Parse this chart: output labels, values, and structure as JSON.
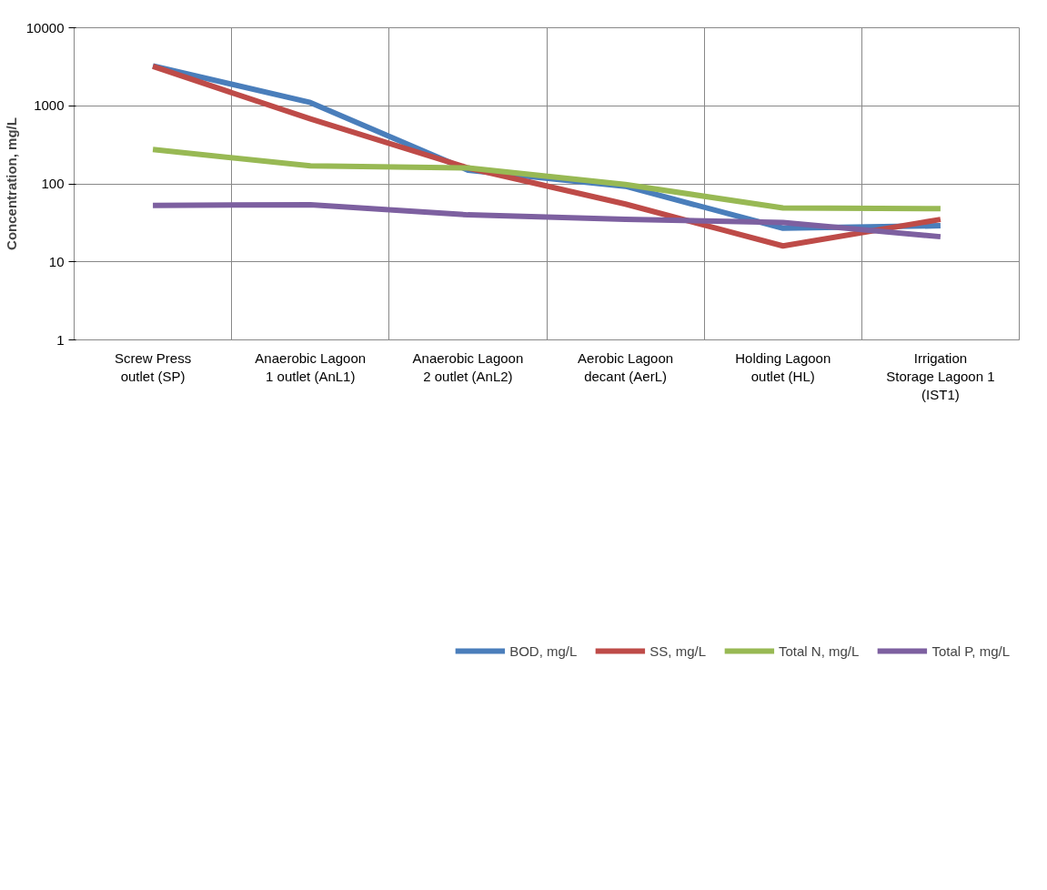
{
  "chart_data": {
    "type": "line",
    "ylabel": "Concentration, mg/L",
    "categories": [
      "Screw Press outlet (SP)",
      "Anaerobic Lagoon 1 outlet (AnL1)",
      "Anaerobic Lagoon 2 outlet (AnL2)",
      "Aerobic Lagoon decant (AerL)",
      "Holding Lagoon outlet (HL)",
      "Irrigation Storage Lagoon 1 (IST1)"
    ],
    "series": [
      {
        "name": "BOD, mg/L",
        "color": "#4a7ebb",
        "values": [
          3250,
          1100,
          150,
          93,
          27,
          29
        ]
      },
      {
        "name": "SS, mg/L",
        "color": "#be4b48",
        "values": [
          3200,
          680,
          160,
          55,
          16,
          35
        ]
      },
      {
        "name": "Total N, mg/L",
        "color": "#98b954",
        "values": [
          275,
          170,
          160,
          98,
          49,
          48
        ]
      },
      {
        "name": "Total P, mg/L",
        "color": "#7d60a0",
        "values": [
          53,
          54,
          40,
          35,
          32,
          21
        ]
      }
    ],
    "log": true,
    "ylim": [
      1,
      10000
    ],
    "yticks": [
      1,
      10,
      100,
      1000,
      10000
    ],
    "grid": true,
    "legend": "bottom",
    "marker": "none",
    "line_style": "solid"
  }
}
